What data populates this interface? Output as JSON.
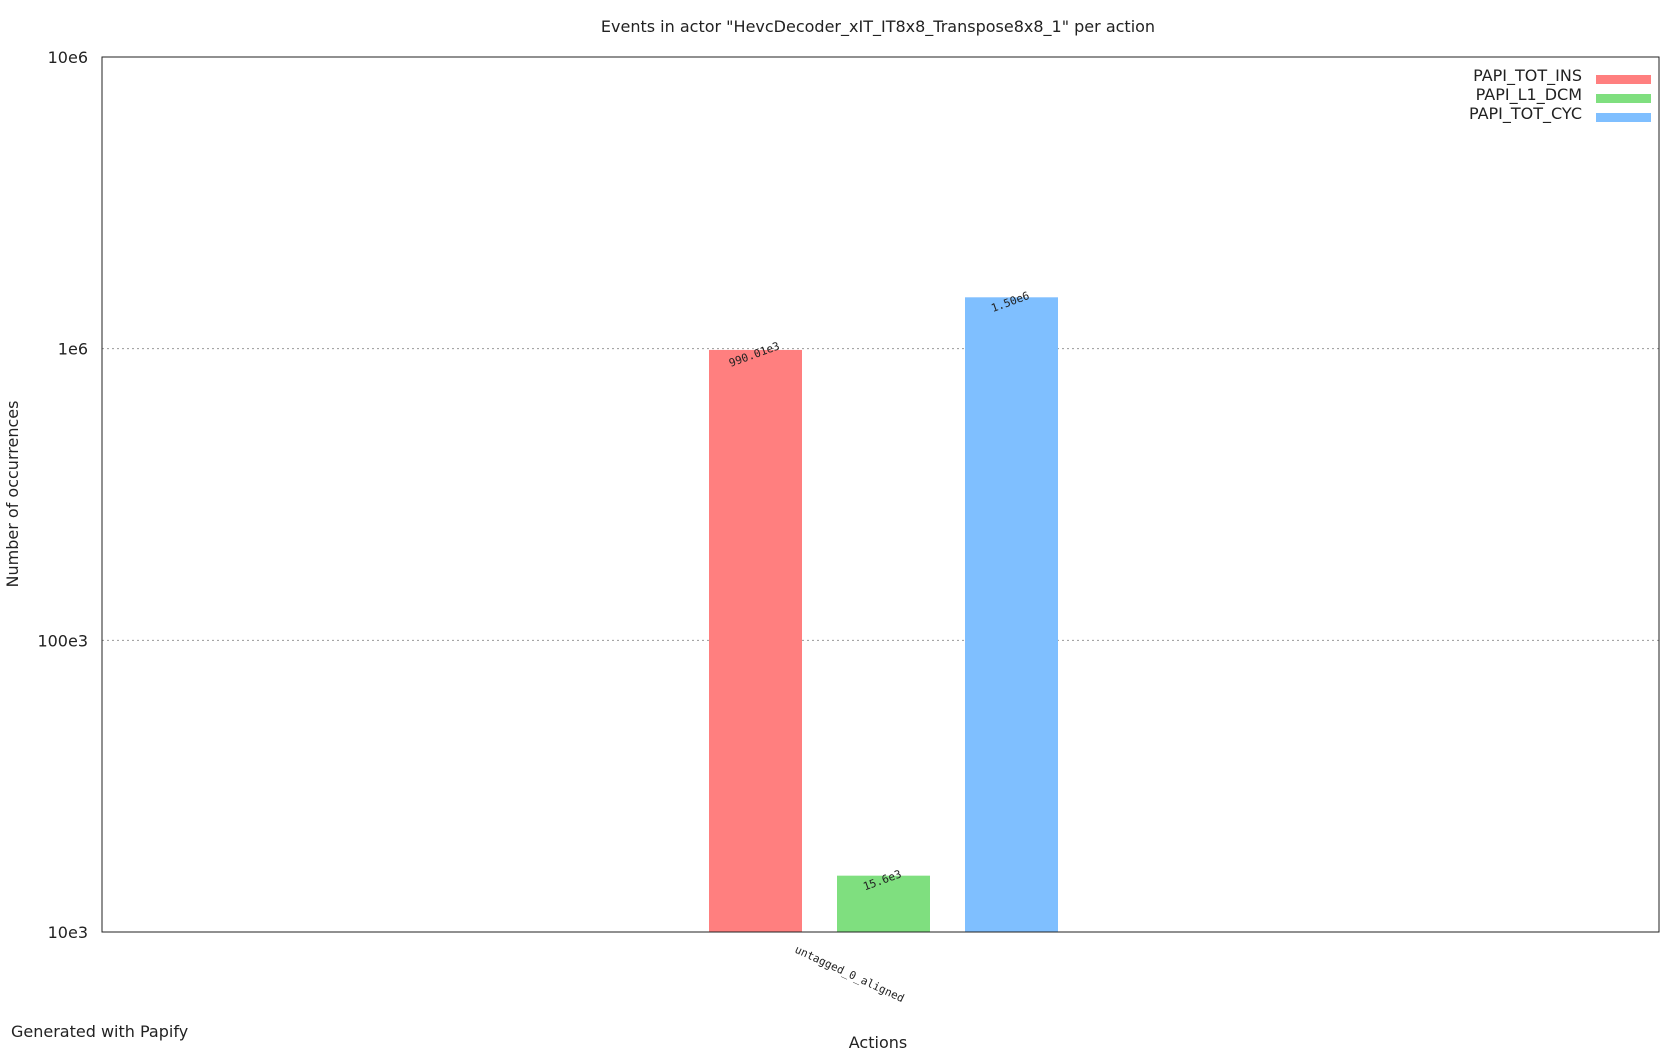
{
  "footer": "Generated with Papify",
  "chart_data": {
    "type": "bar",
    "title": "Events in actor \"HevcDecoder_xIT_IT8x8_Transpose8x8_1\" per action",
    "xlabel": "Actions",
    "ylabel": "Number of occurrences",
    "yscale": "log",
    "ylim": [
      10000,
      10000000
    ],
    "yticks": [
      {
        "value": 10000,
        "label": "10e3"
      },
      {
        "value": 100000,
        "label": "100e3"
      },
      {
        "value": 1000000,
        "label": "1e6"
      },
      {
        "value": 10000000,
        "label": "10e6"
      }
    ],
    "grid": "horizontal dotted",
    "legend_position": "top-right",
    "categories": [
      "untagged_0_aligned"
    ],
    "series": [
      {
        "name": "PAPI_TOT_INS",
        "color": "#ff7f7f",
        "values": [
          990010
        ],
        "labels": [
          "990.01e3"
        ]
      },
      {
        "name": "PAPI_L1_DCM",
        "color": "#7fdf7f",
        "values": [
          15600
        ],
        "labels": [
          "15.6e3"
        ]
      },
      {
        "name": "PAPI_TOT_CYC",
        "color": "#7fbfff",
        "values": [
          1500000
        ],
        "labels": [
          "1.50e6"
        ]
      }
    ]
  }
}
